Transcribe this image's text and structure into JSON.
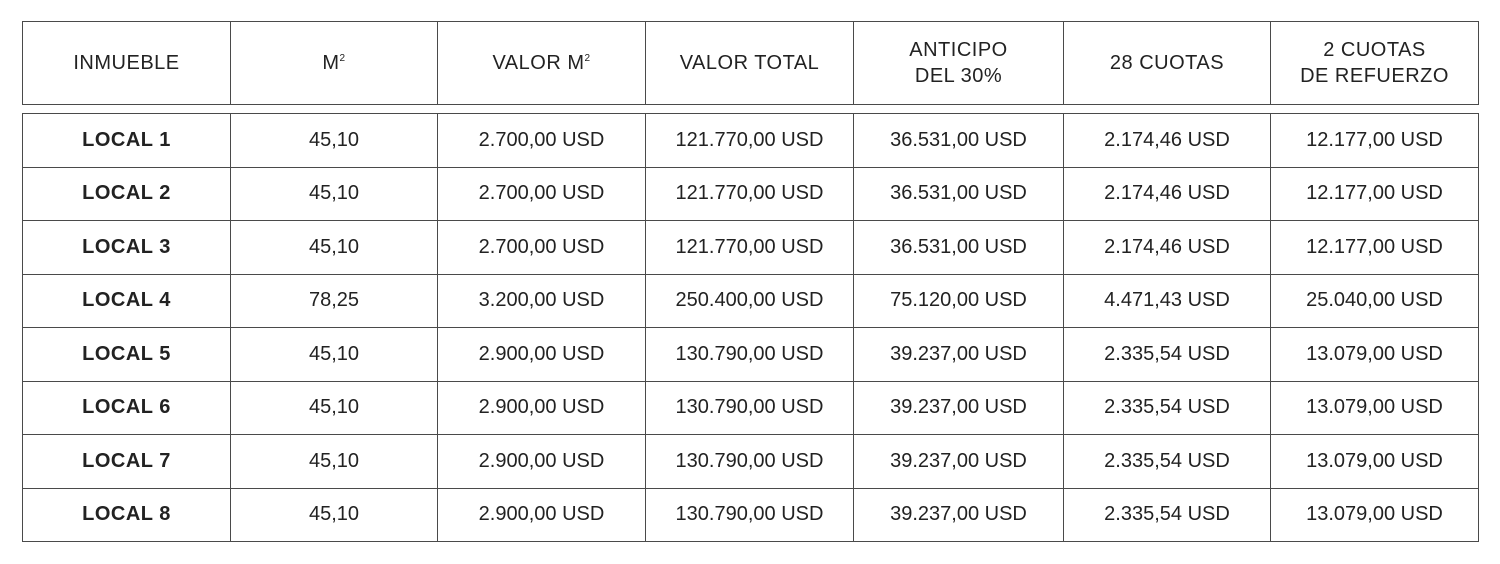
{
  "headers": [
    {
      "label": "INMUEBLE",
      "sup": ""
    },
    {
      "label": "M",
      "sup": "2"
    },
    {
      "label": "VALOR M",
      "sup": "2"
    },
    {
      "label": "VALOR TOTAL",
      "sup": ""
    },
    {
      "label": "ANTICIPO\nDEL 30%",
      "sup": ""
    },
    {
      "label": "28 CUOTAS",
      "sup": ""
    },
    {
      "label": "2 CUOTAS\nDE REFUERZO",
      "sup": ""
    }
  ],
  "rows": [
    [
      "LOCAL 1",
      "45,10",
      "2.700,00 USD",
      "121.770,00 USD",
      "36.531,00 USD",
      "2.174,46 USD",
      "12.177,00 USD"
    ],
    [
      "LOCAL 2",
      "45,10",
      "2.700,00 USD",
      "121.770,00 USD",
      "36.531,00 USD",
      "2.174,46 USD",
      "12.177,00 USD"
    ],
    [
      "LOCAL 3",
      "45,10",
      "2.700,00 USD",
      "121.770,00 USD",
      "36.531,00 USD",
      "2.174,46 USD",
      "12.177,00 USD"
    ],
    [
      "LOCAL 4",
      "78,25",
      "3.200,00 USD",
      "250.400,00 USD",
      "75.120,00 USD",
      "4.471,43 USD",
      "25.040,00 USD"
    ],
    [
      "LOCAL 5",
      "45,10",
      "2.900,00 USD",
      "130.790,00 USD",
      "39.237,00 USD",
      "2.335,54 USD",
      "13.079,00 USD"
    ],
    [
      "LOCAL 6",
      "45,10",
      "2.900,00 USD",
      "130.790,00 USD",
      "39.237,00 USD",
      "2.335,54 USD",
      "13.079,00 USD"
    ],
    [
      "LOCAL 7",
      "45,10",
      "2.900,00 USD",
      "130.790,00 USD",
      "39.237,00 USD",
      "2.335,54 USD",
      "13.079,00 USD"
    ],
    [
      "LOCAL 8",
      "45,10",
      "2.900,00 USD",
      "130.790,00 USD",
      "39.237,00 USD",
      "2.335,54 USD",
      "13.079,00 USD"
    ]
  ]
}
